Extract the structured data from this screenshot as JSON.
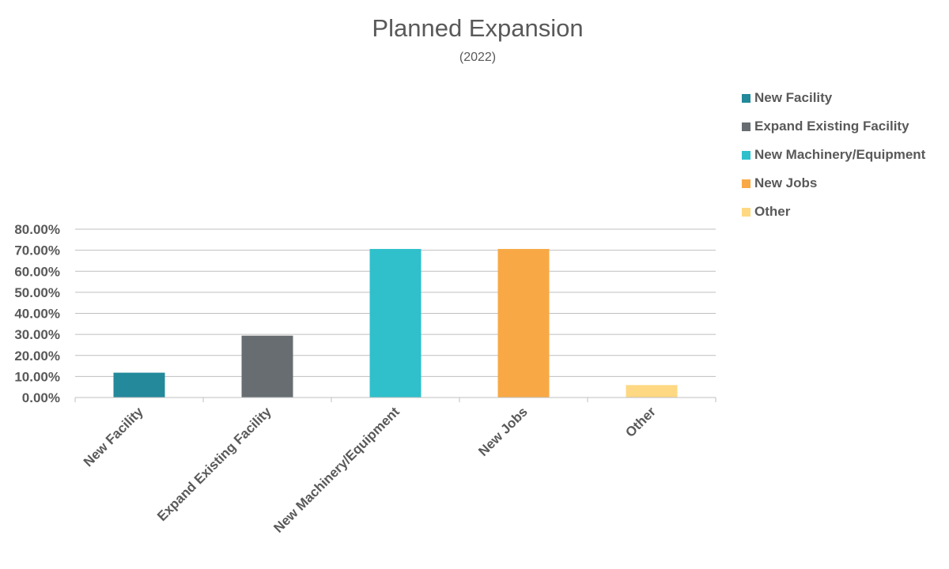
{
  "chart_data": {
    "type": "bar",
    "title": "Planned Expansion",
    "subtitle": "(2022)",
    "categories": [
      "New Facility",
      "Expand Existing Facility",
      "New Machinery/Equipment",
      "New Jobs",
      "Other"
    ],
    "values": [
      11.8,
      29.4,
      70.6,
      70.6,
      5.9
    ],
    "colors": [
      "#23899B",
      "#676D70",
      "#2FC0CB",
      "#F8A946",
      "#FED882"
    ],
    "ylim": [
      0,
      80
    ],
    "y_ticks": [
      0,
      10,
      20,
      30,
      40,
      50,
      60,
      70,
      80
    ],
    "y_tick_labels": [
      "0.00%",
      "10.00%",
      "20.00%",
      "30.00%",
      "40.00%",
      "50.00%",
      "60.00%",
      "70.00%",
      "80.00%"
    ],
    "grid": true,
    "legend_position": "top-right",
    "xlabel": "",
    "ylabel": ""
  },
  "legend": [
    {
      "label": "New Facility",
      "color": "#23899B"
    },
    {
      "label": "Expand Existing Facility",
      "color": "#676D70"
    },
    {
      "label": "New Machinery/Equipment",
      "color": "#2FC0CB"
    },
    {
      "label": "New Jobs",
      "color": "#F8A946"
    },
    {
      "label": "Other",
      "color": "#FED882"
    }
  ]
}
